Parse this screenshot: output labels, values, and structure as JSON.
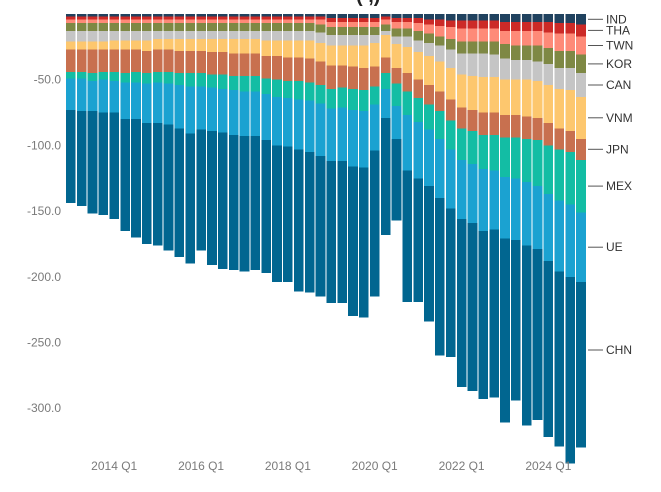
{
  "chart_data": {
    "type": "bar",
    "stacked": true,
    "title_fragment": "(                ,)",
    "categories": [
      "2013 Q1",
      "2013 Q2",
      "2013 Q3",
      "2013 Q4",
      "2014 Q1",
      "2014 Q2",
      "2014 Q3",
      "2014 Q4",
      "2015 Q1",
      "2015 Q2",
      "2015 Q3",
      "2015 Q4",
      "2016 Q1",
      "2016 Q2",
      "2016 Q3",
      "2016 Q4",
      "2017 Q1",
      "2017 Q2",
      "2017 Q3",
      "2017 Q4",
      "2018 Q1",
      "2018 Q2",
      "2018 Q3",
      "2018 Q4",
      "2019 Q1",
      "2019 Q2",
      "2019 Q3",
      "2019 Q4",
      "2020 Q1",
      "2020 Q2",
      "2020 Q3",
      "2020 Q4",
      "2021 Q1",
      "2021 Q2",
      "2021 Q3",
      "2021 Q4",
      "2022 Q1",
      "2022 Q2",
      "2022 Q3",
      "2022 Q4",
      "2023 Q1",
      "2023 Q2",
      "2023 Q3",
      "2023 Q4",
      "2024 Q1",
      "2024 Q2",
      "2024 Q3",
      "2024 Q4"
    ],
    "x_tick_labels": [
      "2014 Q1",
      "2016 Q1",
      "2018 Q1",
      "2020 Q1",
      "2022 Q1",
      "2024 Q1"
    ],
    "y_ticks": [
      -50,
      -100,
      -150,
      -200,
      -250,
      -300
    ],
    "y_tick_labels": [
      "-50.0",
      "-100.0",
      "-150.0",
      "-200.0",
      "-250.0",
      "-300.0"
    ],
    "ylim": [
      -340,
      5
    ],
    "grid": false,
    "legend_placement": "right",
    "series": [
      {
        "name": "CHN",
        "color": "#016690",
        "values": [
          -71,
          -72,
          -78,
          -78,
          -81,
          -85,
          -90,
          -92,
          -93,
          -96,
          -98,
          -99,
          -92,
          -102,
          -104,
          -103,
          -103,
          -102,
          -101,
          -104,
          -103,
          -108,
          -107,
          -107,
          -108,
          -108,
          -114,
          -114,
          -111,
          -89,
          -62,
          -100,
          -94,
          -103,
          -120,
          -113,
          -128,
          -128,
          -128,
          -128,
          -140,
          -122,
          -137,
          -130,
          -134,
          -133,
          -142,
          -126
        ]
      },
      {
        "name": "UE",
        "color": "#1ba2d1",
        "values": [
          -24,
          -25,
          -23,
          -25,
          -24,
          -28,
          -28,
          -30,
          -31,
          -31,
          -33,
          -36,
          -33,
          -33,
          -33,
          -34,
          -34,
          -34,
          -35,
          -37,
          -37,
          -38,
          -39,
          -40,
          -40,
          -41,
          -43,
          -43,
          -35,
          -22,
          -25,
          -42,
          -43,
          -43,
          -45,
          -45,
          -45,
          -45,
          -47,
          -45,
          -47,
          -47,
          -48,
          -48,
          -51,
          -54,
          -55,
          -53
        ]
      },
      {
        "name": "MEX",
        "color": "#13bda4",
        "values": [
          -5,
          -5,
          -6,
          -6,
          -7,
          -7,
          -8,
          -8,
          -8,
          -9,
          -9,
          -10,
          -10,
          -10,
          -11,
          -11,
          -12,
          -12,
          -12,
          -13,
          -13,
          -14,
          -14,
          -14,
          -15,
          -15,
          -16,
          -16,
          -14,
          -12,
          -17,
          -18,
          -18,
          -19,
          -21,
          -22,
          -24,
          -25,
          -26,
          -27,
          -30,
          -31,
          -33,
          -35,
          -37,
          -39,
          -40,
          -40
        ]
      },
      {
        "name": "JPN",
        "color": "#c8704f",
        "values": [
          -17,
          -17,
          -18,
          -17,
          -17,
          -18,
          -17,
          -17,
          -17,
          -17,
          -17,
          -17,
          -17,
          -17,
          -17,
          -17,
          -17,
          -17,
          -17,
          -18,
          -18,
          -18,
          -18,
          -18,
          -18,
          -17,
          -17,
          -17,
          -15,
          -12,
          -12,
          -14,
          -14,
          -15,
          -15,
          -16,
          -16,
          -16,
          -17,
          -17,
          -17,
          -17,
          -17,
          -17,
          -17,
          -16,
          -16,
          -16
        ]
      },
      {
        "name": "VNM",
        "color": "#fdc76e",
        "values": [
          -6,
          -6,
          -6,
          -6,
          -7,
          -7,
          -7,
          -8,
          -8,
          -8,
          -9,
          -9,
          -9,
          -10,
          -10,
          -11,
          -11,
          -11,
          -12,
          -12,
          -13,
          -13,
          -14,
          -14,
          -15,
          -15,
          -16,
          -17,
          -18,
          -17,
          -18,
          -20,
          -21,
          -22,
          -23,
          -24,
          -25,
          -26,
          -27,
          -27,
          -27,
          -27,
          -28,
          -28,
          -29,
          -30,
          -31,
          -32
        ]
      },
      {
        "name": "CAN",
        "color": "#c5c5c5",
        "values": [
          -8,
          -8,
          -8,
          -8,
          -7,
          -7,
          -7,
          -7,
          -6,
          -6,
          -6,
          -6,
          -6,
          -6,
          -6,
          -6,
          -6,
          -6,
          -7,
          -7,
          -7,
          -7,
          -7,
          -8,
          -8,
          -8,
          -8,
          -8,
          -6,
          -3,
          -6,
          -8,
          -9,
          -10,
          -12,
          -14,
          -16,
          -17,
          -18,
          -17,
          -16,
          -15,
          -15,
          -15,
          -16,
          -16,
          -17,
          -18
        ]
      },
      {
        "name": "KOR",
        "color": "#7e8844",
        "values": [
          -6,
          -6,
          -6,
          -6,
          -6,
          -6,
          -6,
          -6,
          -6,
          -6,
          -6,
          -6,
          -6,
          -6,
          -6,
          -6,
          -6,
          -6,
          -6,
          -6,
          -6,
          -6,
          -6,
          -6,
          -6,
          -6,
          -6,
          -6,
          -6,
          -5,
          -6,
          -6,
          -7,
          -7,
          -7,
          -8,
          -9,
          -9,
          -9,
          -10,
          -11,
          -11,
          -11,
          -12,
          -12,
          -13,
          -13,
          -14
        ]
      },
      {
        "name": "TWN",
        "color": "#fe8a78",
        "values": [
          -3,
          -3,
          -3,
          -3,
          -3,
          -3,
          -3,
          -3,
          -3,
          -3,
          -3,
          -3,
          -3,
          -3,
          -3,
          -3,
          -3,
          -3,
          -3,
          -3,
          -3,
          -3,
          -3,
          -4,
          -4,
          -4,
          -4,
          -4,
          -4,
          -4,
          -5,
          -5,
          -6,
          -7,
          -8,
          -9,
          -10,
          -10,
          -10,
          -10,
          -10,
          -11,
          -11,
          -11,
          -12,
          -13,
          -13,
          -14
        ]
      },
      {
        "name": "THA",
        "color": "#cc2a27",
        "values": [
          -2,
          -2,
          -2,
          -2,
          -2,
          -2,
          -2,
          -2,
          -2,
          -2,
          -2,
          -2,
          -2,
          -2,
          -2,
          -2,
          -2,
          -2,
          -2,
          -2,
          -2,
          -2,
          -2,
          -2,
          -3,
          -3,
          -3,
          -3,
          -3,
          -2,
          -3,
          -3,
          -4,
          -4,
          -5,
          -5,
          -6,
          -6,
          -6,
          -6,
          -7,
          -7,
          -7,
          -7,
          -8,
          -8,
          -8,
          -9
        ]
      },
      {
        "name": "IND",
        "color": "#20425f",
        "values": [
          -2,
          -2,
          -2,
          -2,
          -2,
          -2,
          -2,
          -2,
          -2,
          -2,
          -2,
          -2,
          -2,
          -2,
          -2,
          -2,
          -2,
          -2,
          -2,
          -2,
          -2,
          -2,
          -2,
          -2,
          -3,
          -3,
          -3,
          -3,
          -3,
          -2,
          -3,
          -3,
          -3,
          -4,
          -4,
          -5,
          -5,
          -5,
          -5,
          -5,
          -6,
          -6,
          -6,
          -6,
          -6,
          -7,
          -7,
          -8
        ]
      }
    ]
  }
}
